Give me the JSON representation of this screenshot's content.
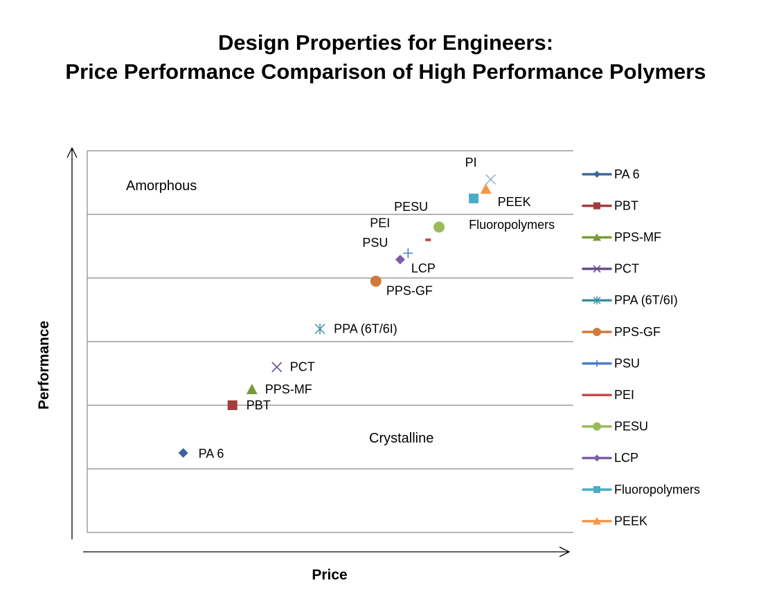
{
  "chart_data": {
    "type": "scatter",
    "title": "Design Properties for Engineers:",
    "subtitle": "Price Performance Comparison of High Performance Polymers",
    "xlabel": "Price",
    "ylabel": "Performance",
    "xlim": [
      0,
      8
    ],
    "ylim": [
      0,
      6
    ],
    "grid": "horizontal",
    "legend_placement": "right",
    "annotations": [
      "Amorphous",
      "Crystalline"
    ],
    "series": [
      {
        "name": "PA 6",
        "x": 1.58,
        "y": 1.25,
        "marker": "diamond",
        "color": "#3c64a0"
      },
      {
        "name": "PBT",
        "x": 2.39,
        "y": 2.0,
        "marker": "square",
        "color": "#a33c3a"
      },
      {
        "name": "PPS-MF",
        "x": 2.71,
        "y": 2.25,
        "marker": "triangle",
        "color": "#7a9a3e"
      },
      {
        "name": "PCT",
        "x": 3.12,
        "y": 2.6,
        "marker": "x",
        "color": "#644e8a"
      },
      {
        "name": "PPA (6T/6I)",
        "x": 3.83,
        "y": 3.2,
        "marker": "star",
        "color": "#3a8fa3"
      },
      {
        "name": "PPS-GF",
        "x": 4.75,
        "y": 3.95,
        "marker": "circle",
        "color": "#d0793a"
      },
      {
        "name": "PSU",
        "x": 5.28,
        "y": 4.39,
        "marker": "plus",
        "color": "#4a7cc8"
      },
      {
        "name": "PEI",
        "x": 5.61,
        "y": 4.6,
        "marker": "dash",
        "color": "#c84a4a"
      },
      {
        "name": "PESU",
        "x": 5.79,
        "y": 4.8,
        "marker": "circle",
        "color": "#9bbb59"
      },
      {
        "name": "LCP",
        "x": 5.15,
        "y": 4.29,
        "marker": "diamond",
        "color": "#7c5ca8"
      },
      {
        "name": "Fluoropolymers",
        "x": 6.36,
        "y": 5.25,
        "marker": "square",
        "color": "#4bacc6"
      },
      {
        "name": "PEEK",
        "x": 6.56,
        "y": 5.4,
        "marker": "triangle",
        "color": "#f79646"
      }
    ],
    "extra_points": [
      {
        "label": "PI",
        "x": 6.64,
        "y": 5.55,
        "marker": "x",
        "color": "#95b3d7"
      }
    ]
  }
}
